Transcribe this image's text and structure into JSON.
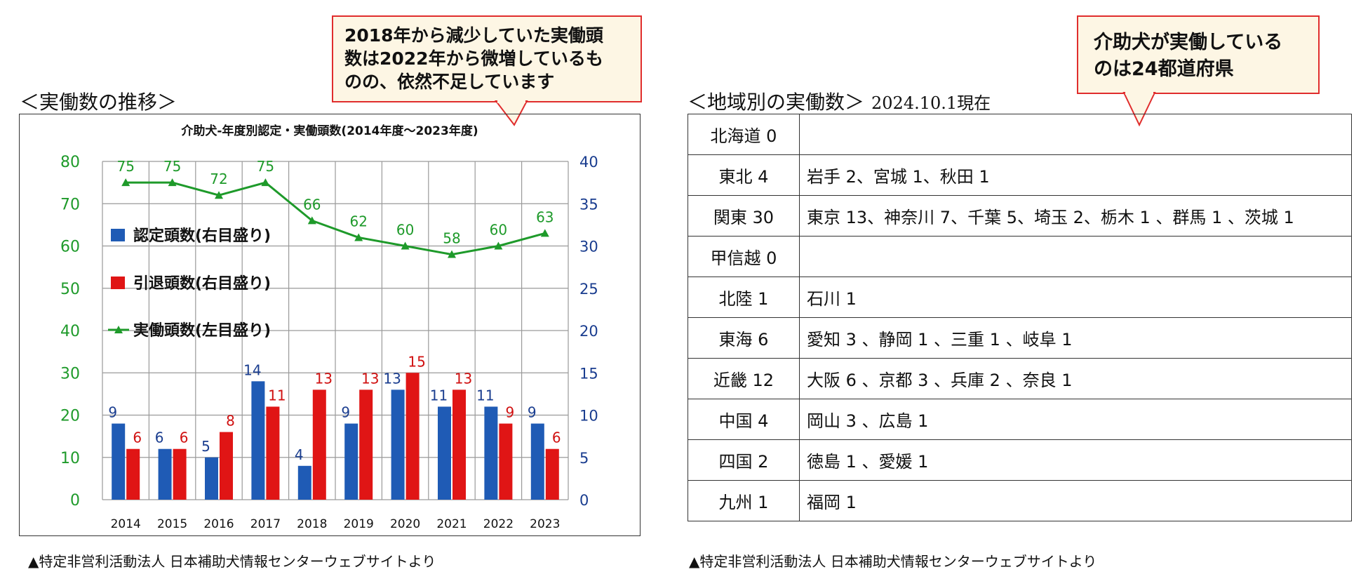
{
  "callout_left": {
    "lines": [
      "2018年から減少していた実働頭",
      "数は2022年から微増しているも",
      "のの、依然不足しています"
    ]
  },
  "callout_right": {
    "lines": [
      "介助犬が実働している",
      "のは24都道府県"
    ]
  },
  "left_section": {
    "title": "＜実働数の推移＞",
    "footnote": "▲特定非営利活動法人 日本補助犬情報センターウェブサイトより"
  },
  "right_section": {
    "title": "＜地域別の実働数＞",
    "date": "2024.10.1現在",
    "footnote": "▲特定非営利活動法人 日本補助犬情報センターウェブサイトより"
  },
  "chart_data": {
    "type": "bar",
    "title": "介助犬-年度別認定・実働頭数(2014年度〜2023年度)",
    "categories": [
      "2014",
      "2015",
      "2016",
      "2017",
      "2018",
      "2019",
      "2020",
      "2021",
      "2022",
      "2023"
    ],
    "left_axis": {
      "ylim": [
        0,
        80
      ],
      "ticks": [
        "0",
        "10",
        "20",
        "30",
        "40",
        "50",
        "60",
        "70",
        "80"
      ]
    },
    "right_axis": {
      "ylim": [
        0,
        40
      ],
      "ticks": [
        "0",
        "5",
        "10",
        "15",
        "20",
        "25",
        "30",
        "35",
        "40"
      ]
    },
    "grid": true,
    "legend_position": "left-inside",
    "series": [
      {
        "name": "認定頭数(右目盛り)",
        "type": "bar",
        "axis": "right",
        "color": "#1f5bb5",
        "label_color": "#1a3d8f",
        "values": [
          9,
          6,
          5,
          14,
          4,
          9,
          13,
          11,
          11,
          9
        ]
      },
      {
        "name": "引退頭数(右目盛り)",
        "type": "bar",
        "axis": "right",
        "color": "#e01515",
        "label_color": "#d01010",
        "values": [
          6,
          6,
          8,
          11,
          13,
          13,
          15,
          13,
          9,
          6
        ]
      },
      {
        "name": "実働頭数(左目盛り)",
        "type": "line",
        "axis": "left",
        "color": "#1e9a2a",
        "label_color": "#1e9a2a",
        "values": [
          75,
          75,
          72,
          75,
          66,
          62,
          60,
          58,
          60,
          63
        ]
      }
    ],
    "axis_colors": {
      "left": "#1e9a2a",
      "right": "#1a3d8f"
    }
  },
  "region_table": {
    "rows": [
      {
        "region": "北海道 0",
        "detail": ""
      },
      {
        "region": "東北 4",
        "detail": "岩手 2、宮城 1、秋田 1"
      },
      {
        "region": "関東 30",
        "detail": "東京 13、神奈川 7、千葉 5、埼玉 2、栃木 1 、群馬 1 、茨城 1"
      },
      {
        "region": "甲信越 0",
        "detail": ""
      },
      {
        "region": "北陸 1",
        "detail": "石川 1"
      },
      {
        "region": "東海 6",
        "detail": "愛知 3 、静岡 1 、三重 1 、岐阜 1"
      },
      {
        "region": "近畿 12",
        "detail": "大阪 6 、京都 3 、兵庫 2 、奈良 1"
      },
      {
        "region": "中国 4",
        "detail": "岡山 3 、広島 1"
      },
      {
        "region": "四国 2",
        "detail": "徳島 1 、愛媛 1"
      },
      {
        "region": "九州 1",
        "detail": "福岡 1"
      }
    ]
  }
}
